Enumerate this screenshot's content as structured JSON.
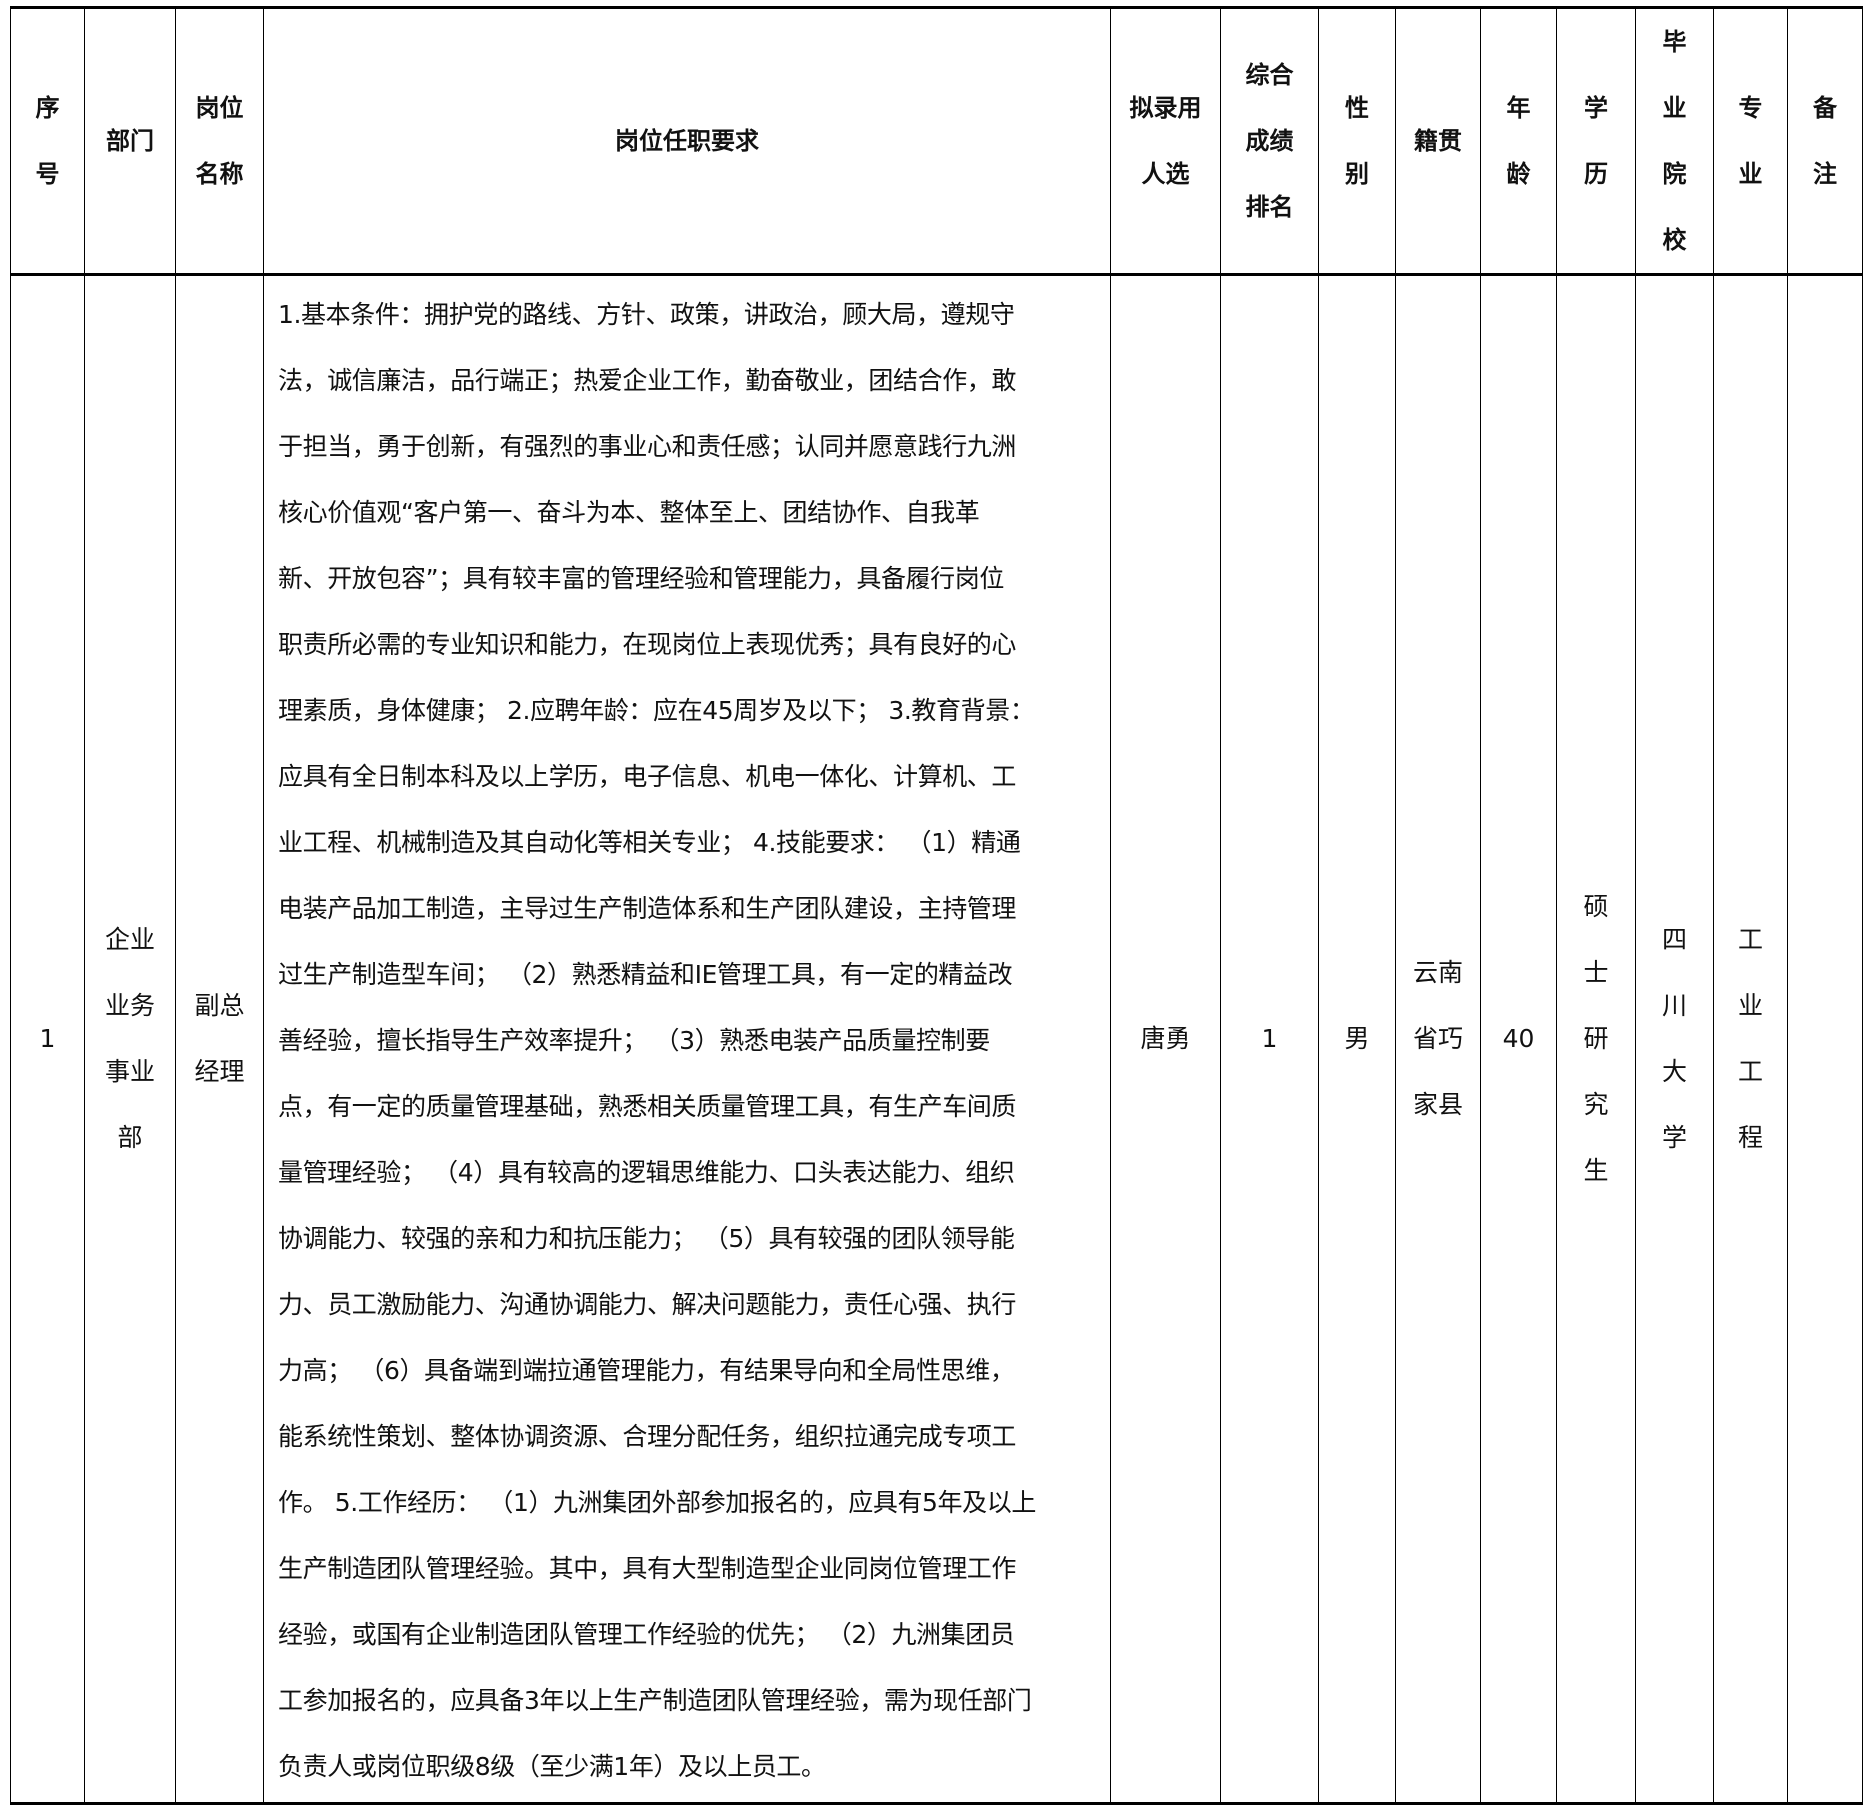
{
  "headers": [
    "序\n号",
    "部门",
    "岗位\n名称",
    "岗位任职要求",
    "拟录用\n人选",
    "综合\n成绩\n排名",
    "性\n别",
    "籍贯",
    "年\n龄",
    "学\n历",
    "毕\n业\n院\n校",
    "专\n业",
    "备\n注"
  ],
  "row": {
    "index": "1",
    "department": "企业\n业务\n事业\n部",
    "position": "副总\n经理",
    "requirements_lines": [
      "1.基本条件：拥护党的路线、方针、政策，讲政治，顾大局，遵规守",
      "法，诚信廉洁，品行端正；热爱企业工作，勤奋敬业，团结合作，敢",
      "于担当，勇于创新，有强烈的事业心和责任感；认同并愿意践行九洲",
      "核心价值观“客户第一、奋斗为本、整体至上、团结协作、自我革",
      "新、开放包容”；具有较丰富的管理经验和管理能力，具备履行岗位",
      "职责所必需的专业知识和能力，在现岗位上表现优秀；具有良好的心",
      "理素质，身体健康； 2.应聘年龄：应在45周岁及以下； 3.教育背景：",
      "应具有全日制本科及以上学历，电子信息、机电一体化、计算机、工",
      "业工程、机械制造及其自动化等相关专业； 4.技能要求： （1）精通",
      "电装产品加工制造，主导过生产制造体系和生产团队建设，主持管理",
      "过生产制造型车间； （2）熟悉精益和IE管理工具，有一定的精益改",
      "善经验，擅长指导生产效率提升； （3）熟悉电装产品质量控制要",
      "点，有一定的质量管理基础，熟悉相关质量管理工具，有生产车间质",
      "量管理经验； （4）具有较高的逻辑思维能力、口头表达能力、组织",
      "协调能力、较强的亲和力和抗压能力； （5）具有较强的团队领导能",
      "力、员工激励能力、沟通协调能力、解决问题能力，责任心强、执行",
      "力高； （6）具备端到端拉通管理能力，有结果导向和全局性思维，",
      "能系统性策划、整体协调资源、合理分配任务，组织拉通完成专项工",
      "作。 5.工作经历： （1）九洲集团外部参加报名的，应具有5年及以上",
      "生产制造团队管理经验。其中，具有大型制造型企业同岗位管理工作",
      "经验，或国有企业制造团队管理工作经验的优先； （2）九洲集团员",
      "工参加报名的，应具备3年以上生产制造团队管理经验，需为现任部门",
      "负责人或岗位职级8级（至少满1年）及以上员工。"
    ],
    "candidate": "唐勇",
    "rank": "1",
    "gender": "男",
    "native_place": "云南\n省巧\n家县",
    "age": "40",
    "education": "硕\n士\n研\n究\n生",
    "school": "四\n川\n大\n学",
    "major": "工\n业\n工\n程",
    "remarks": ""
  }
}
